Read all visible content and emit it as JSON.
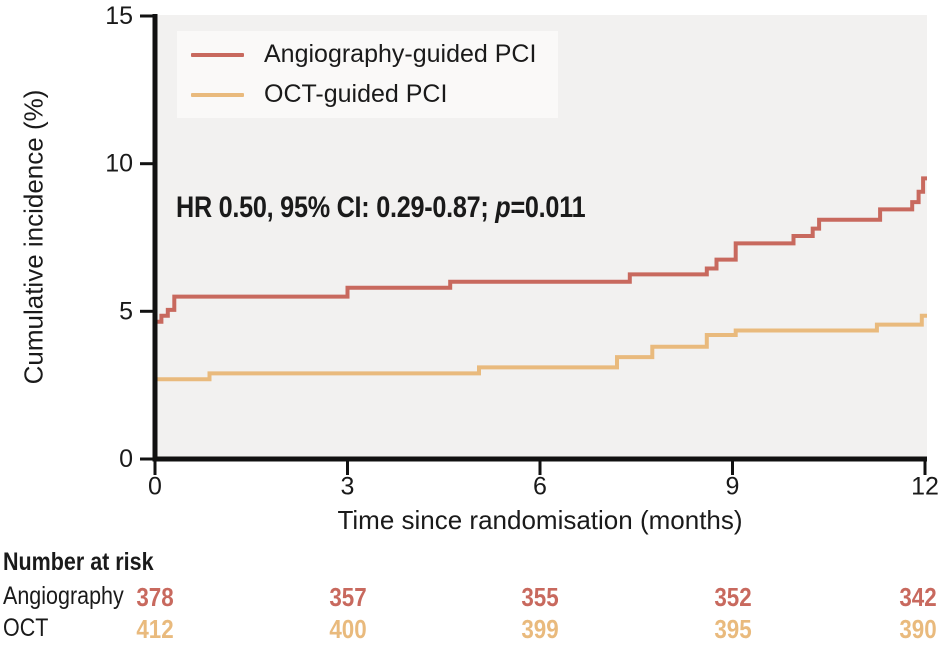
{
  "figure": {
    "background": "#ffffff",
    "plot_background": "#f2f1f0",
    "axis_color": "#111111",
    "text_color": "#1a1a1a"
  },
  "annotation": {
    "prefix": "HR 0.50, 95% CI: 0.29-0.87; ",
    "p": "p",
    "suffix": "=0.011"
  },
  "legend": {
    "background": "#faf9f8",
    "items": [
      {
        "label": "Angiography-guided PCI",
        "color": "#c8695e"
      },
      {
        "label": "OCT-guided PCI",
        "color": "#e9ba7d"
      }
    ]
  },
  "chart_data": {
    "type": "line",
    "subtype": "step-cumulative-incidence",
    "title": "",
    "xlabel": "Time since randomisation (months)",
    "ylabel": "Cumulative incidence (%)",
    "xlim": [
      0,
      12
    ],
    "ylim": [
      0,
      15
    ],
    "xticks": [
      0,
      3,
      6,
      9,
      12
    ],
    "yticks": [
      0,
      5,
      10,
      15
    ],
    "grid": false,
    "legend_position": "upper-left-inside",
    "annotation": "HR 0.50, 95% CI: 0.29-0.87; p=0.011",
    "series": [
      {
        "name": "Angiography-guided PCI",
        "color": "#c8695e",
        "steps": [
          [
            0,
            4.65
          ],
          [
            0.1,
            4.85
          ],
          [
            0.2,
            5.05
          ],
          [
            0.3,
            5.5
          ],
          [
            3.0,
            5.8
          ],
          [
            4.6,
            6.0
          ],
          [
            7.4,
            6.25
          ],
          [
            8.6,
            6.45
          ],
          [
            8.75,
            6.75
          ],
          [
            9.05,
            7.3
          ],
          [
            9.95,
            7.55
          ],
          [
            10.25,
            7.8
          ],
          [
            10.35,
            8.1
          ],
          [
            11.3,
            8.45
          ],
          [
            11.8,
            8.7
          ],
          [
            11.9,
            9.05
          ],
          [
            11.97,
            9.5
          ]
        ]
      },
      {
        "name": "OCT-guided PCI",
        "color": "#e9ba7d",
        "steps": [
          [
            0,
            2.7
          ],
          [
            0.85,
            2.9
          ],
          [
            5.05,
            3.1
          ],
          [
            7.2,
            3.45
          ],
          [
            7.75,
            3.8
          ],
          [
            8.6,
            4.2
          ],
          [
            9.05,
            4.35
          ],
          [
            11.25,
            4.55
          ],
          [
            11.95,
            4.85
          ]
        ]
      }
    ]
  },
  "risk_table": {
    "header": "Number at risk",
    "time_points": [
      0,
      3,
      6,
      9,
      12
    ],
    "rows": [
      {
        "label": "Angiography",
        "color": "#c8695e",
        "values": [
          "378",
          "357",
          "355",
          "352",
          "342"
        ]
      },
      {
        "label": "OCT",
        "color": "#e9ba7d",
        "values": [
          "412",
          "400",
          "399",
          "395",
          "390"
        ]
      }
    ]
  }
}
